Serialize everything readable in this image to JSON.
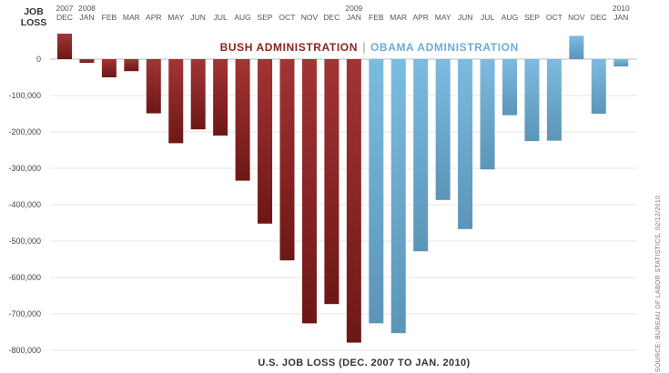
{
  "chart_data": {
    "type": "bar",
    "title": "U.S. JOB LOSS (DEC. 2007 TO JAN. 2010)",
    "ylabel_line1": "JOB",
    "ylabel_line2": "LOSS",
    "source": "SOURCE: BUREAU OF LABOR STATISTICS, 02/12/2010",
    "ylim": [
      -800000,
      100000
    ],
    "yticks": [
      0,
      -100000,
      -200000,
      -300000,
      -400000,
      -500000,
      -600000,
      -700000,
      -800000
    ],
    "ytick_labels": [
      "0",
      "-100,000",
      "-200,000",
      "-300,000",
      "-400,000",
      "-500,000",
      "-600,000",
      "-700,000",
      "-800,000"
    ],
    "grid": true,
    "categories": [
      "DEC",
      "JAN",
      "FEB",
      "MAR",
      "APR",
      "MAY",
      "JUN",
      "JUL",
      "AUG",
      "SEP",
      "OCT",
      "NOV",
      "DEC",
      "JAN",
      "FEB",
      "MAR",
      "APR",
      "MAY",
      "JUN",
      "JUL",
      "AUG",
      "SEP",
      "OCT",
      "NOV",
      "DEC",
      "JAN"
    ],
    "year_labels": [
      "2007",
      "2008",
      "",
      "",
      "",
      "",
      "",
      "",
      "",
      "",
      "",
      "",
      "",
      "2009",
      "",
      "",
      "",
      "",
      "",
      "",
      "",
      "",
      "",
      "",
      "",
      "2010"
    ],
    "values": [
      70000,
      -10000,
      -50000,
      -33000,
      -149000,
      -231000,
      -193000,
      -210000,
      -334000,
      -452000,
      -553000,
      -726000,
      -673000,
      -779000,
      -726000,
      -753000,
      -528000,
      -387000,
      -467000,
      -303000,
      -154000,
      -225000,
      -224000,
      64000,
      -150000,
      -20000
    ],
    "series": [
      {
        "name": "BUSH ADMINISTRATION",
        "color": "#8b2323",
        "start": 0,
        "end": 13
      },
      {
        "name": "OBAMA ADMINISTRATION",
        "color": "#6aaed6",
        "start": 14,
        "end": 25
      }
    ],
    "legend_separator": "|"
  }
}
